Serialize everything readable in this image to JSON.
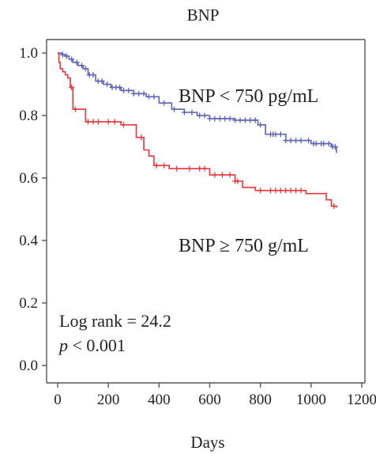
{
  "chart_data": {
    "type": "line",
    "title": "BNP",
    "xlabel": "Days",
    "ylabel": "",
    "xlim": [
      0,
      1200
    ],
    "ylim": [
      0.0,
      1.0
    ],
    "x_ticks": [
      0,
      200,
      400,
      600,
      800,
      1000,
      1200
    ],
    "x_tick_labels": [
      "0",
      "200",
      "400",
      "600",
      "800",
      "1000",
      "1200"
    ],
    "y_ticks": [
      0.0,
      0.2,
      0.4,
      0.6,
      0.8,
      1.0
    ],
    "y_tick_labels": [
      "0.0",
      "0.2",
      "0.4",
      "0.6",
      "0.8",
      "1.0"
    ],
    "grid": false,
    "series": [
      {
        "name": "BNP < 750 pg/mL",
        "color": "#5a63b8",
        "step_x": [
          0,
          15,
          30,
          45,
          60,
          80,
          100,
          120,
          150,
          180,
          210,
          250,
          300,
          350,
          400,
          450,
          500,
          550,
          600,
          700,
          760,
          790,
          820,
          900,
          1000,
          1060,
          1080,
          1100
        ],
        "step_y": [
          1.0,
          0.995,
          0.99,
          0.98,
          0.97,
          0.96,
          0.95,
          0.93,
          0.91,
          0.9,
          0.89,
          0.88,
          0.87,
          0.86,
          0.84,
          0.82,
          0.81,
          0.8,
          0.79,
          0.785,
          0.785,
          0.77,
          0.74,
          0.72,
          0.71,
          0.71,
          0.7,
          0.68
        ],
        "censor_x": [
          20,
          35,
          55,
          75,
          95,
          110,
          125,
          140,
          160,
          175,
          195,
          215,
          230,
          245,
          260,
          280,
          300,
          320,
          340,
          360,
          380,
          420,
          460,
          500,
          530,
          560,
          580,
          600,
          620,
          640,
          660,
          680,
          700,
          720,
          740,
          760,
          780,
          800,
          840,
          850,
          860,
          880,
          900,
          920,
          940,
          960,
          990,
          1010,
          1020,
          1040,
          1050,
          1070,
          1085,
          1095
        ],
        "label": "BNP < 750 pg/mL"
      },
      {
        "name": "BNP ≥ 750 g/mL",
        "color": "#e8353b",
        "step_x": [
          0,
          5,
          10,
          20,
          30,
          40,
          50,
          60,
          110,
          250,
          310,
          340,
          360,
          380,
          440,
          600,
          700,
          730,
          780,
          980,
          1060,
          1080,
          1100
        ],
        "step_y": [
          1.0,
          0.97,
          0.95,
          0.94,
          0.93,
          0.92,
          0.89,
          0.82,
          0.78,
          0.77,
          0.73,
          0.69,
          0.67,
          0.64,
          0.63,
          0.61,
          0.59,
          0.57,
          0.56,
          0.55,
          0.53,
          0.51,
          0.505
        ],
        "censor_x": [
          55,
          70,
          120,
          140,
          160,
          200,
          225,
          260,
          330,
          390,
          420,
          470,
          520,
          560,
          580,
          620,
          650,
          680,
          700,
          710,
          800,
          840,
          860,
          880,
          900,
          920,
          940,
          960,
          1090
        ],
        "label": "BNP ≥ 750 g/mL"
      }
    ],
    "annotations": {
      "log_rank": "Log rank = 24.2",
      "p_letter": "p",
      "p_value": " < 0.001"
    }
  }
}
